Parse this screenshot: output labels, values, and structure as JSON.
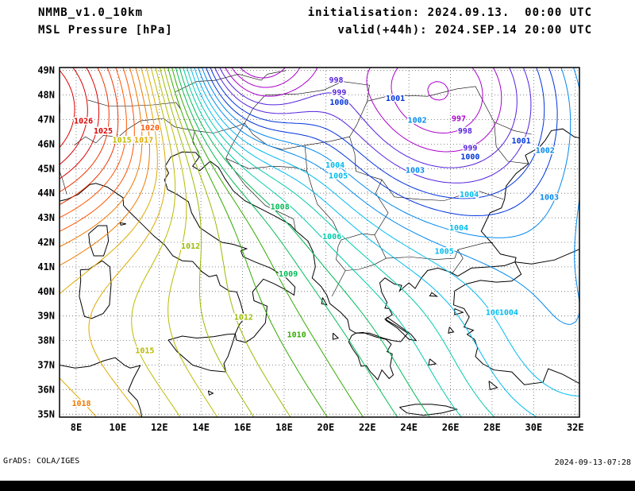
{
  "header": {
    "model": "NMMB_v1.0_10km",
    "field": "MSL Pressure [hPa]",
    "init": "initialisation: 2024.09.13.  00:00 UTC",
    "valid": "valid(+44h): 2024.SEP.14 20:00 UTC"
  },
  "footer": {
    "left": "GrADS: COLA/IGES",
    "right": "2024-09-13-07:28"
  },
  "map": {
    "unit": "hPa",
    "lat_labels": [
      "49N",
      "48N",
      "47N",
      "46N",
      "45N",
      "44N",
      "43N",
      "42N",
      "41N",
      "40N",
      "39N",
      "38N",
      "37N",
      "36N",
      "35N"
    ],
    "lon_labels": [
      "8E",
      "10E",
      "12E",
      "14E",
      "16E",
      "18E",
      "20E",
      "22E",
      "24E",
      "26E",
      "28E",
      "30E",
      "32E"
    ],
    "level_min": 995,
    "level_max": 1027,
    "palette": {
      "995": "#aa00cc",
      "998": "#5522dd",
      "1000": "#0033dd",
      "1002": "#0088ee",
      "1004": "#00bbee",
      "1006": "#00ccaa",
      "1008": "#00bb55",
      "1010": "#33aa00",
      "1012": "#99bb00",
      "1014": "#bbbb00",
      "1016": "#ddaa00",
      "1018": "#f07800",
      "1020": "#ff5500",
      "1022": "#f03300",
      "1024": "#dd0000"
    },
    "contour_labels": [
      {
        "v": "1026",
        "lon": 8.35,
        "lat": 46.95
      },
      {
        "v": "1025",
        "lon": 9.3,
        "lat": 46.55
      },
      {
        "v": "1020",
        "lon": 11.55,
        "lat": 46.68
      },
      {
        "v": "1015",
        "lon": 10.2,
        "lat": 46.18
      },
      {
        "v": "1017",
        "lon": 11.25,
        "lat": 46.18
      },
      {
        "v": "998",
        "lon": 20.5,
        "lat": 48.62
      },
      {
        "v": "999",
        "lon": 20.65,
        "lat": 48.12
      },
      {
        "v": "1000",
        "lon": 20.65,
        "lat": 47.72
      },
      {
        "v": "1001",
        "lon": 23.35,
        "lat": 47.88
      },
      {
        "v": "1002",
        "lon": 24.4,
        "lat": 46.98
      },
      {
        "v": "997",
        "lon": 26.4,
        "lat": 47.05
      },
      {
        "v": "998",
        "lon": 26.7,
        "lat": 46.55
      },
      {
        "v": "999",
        "lon": 26.95,
        "lat": 45.85
      },
      {
        "v": "1000",
        "lon": 26.95,
        "lat": 45.5
      },
      {
        "v": "1001",
        "lon": 29.4,
        "lat": 46.15
      },
      {
        "v": "1002",
        "lon": 30.55,
        "lat": 45.75
      },
      {
        "v": "1003",
        "lon": 24.3,
        "lat": 44.95
      },
      {
        "v": "1003",
        "lon": 30.75,
        "lat": 43.85
      },
      {
        "v": "1004",
        "lon": 26.9,
        "lat": 43.95
      },
      {
        "v": "1004",
        "lon": 26.4,
        "lat": 42.6
      },
      {
        "v": "1005",
        "lon": 25.7,
        "lat": 41.65
      },
      {
        "v": "1004",
        "lon": 20.45,
        "lat": 45.15
      },
      {
        "v": "1005",
        "lon": 20.6,
        "lat": 44.72
      },
      {
        "v": "1008",
        "lon": 17.8,
        "lat": 43.45
      },
      {
        "v": "1006",
        "lon": 20.3,
        "lat": 42.25
      },
      {
        "v": "1009",
        "lon": 18.2,
        "lat": 40.72
      },
      {
        "v": "1012",
        "lon": 13.5,
        "lat": 41.85
      },
      {
        "v": "1012",
        "lon": 16.05,
        "lat": 38.95
      },
      {
        "v": "1010",
        "lon": 18.6,
        "lat": 38.25
      },
      {
        "v": "1004",
        "lon": 28.15,
        "lat": 39.15
      },
      {
        "v": "1004",
        "lon": 28.8,
        "lat": 39.15
      },
      {
        "v": "1015",
        "lon": 11.3,
        "lat": 37.6
      },
      {
        "v": "1018",
        "lon": 8.25,
        "lat": 35.45
      }
    ]
  }
}
